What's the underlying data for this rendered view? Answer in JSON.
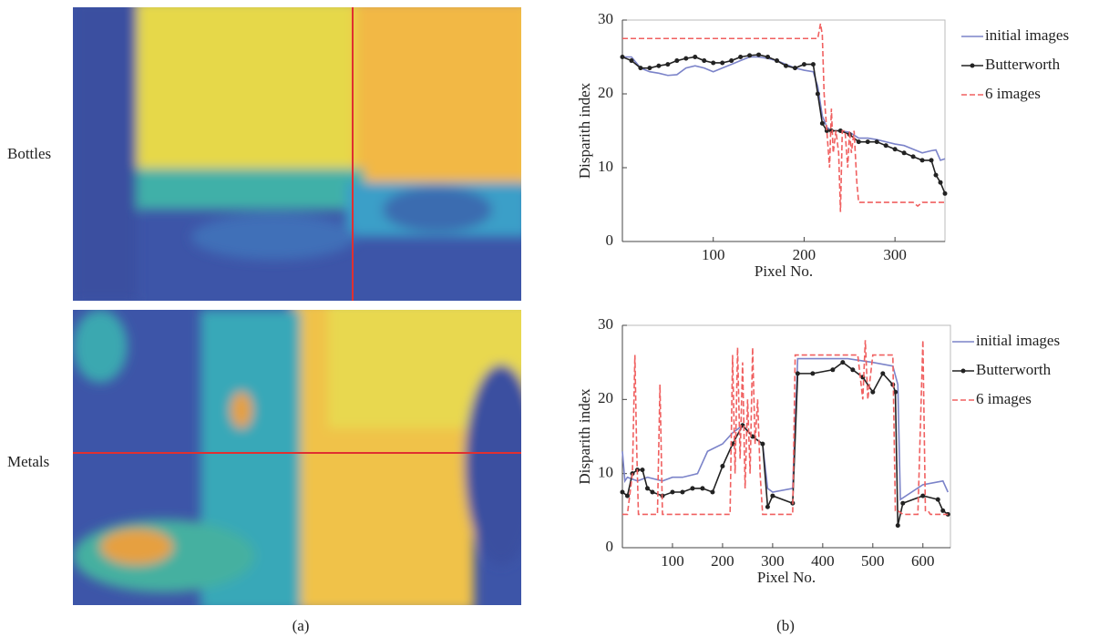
{
  "panels": {
    "a": {
      "label": "(a)",
      "rows": [
        "Bottles",
        "Metals"
      ]
    },
    "b": {
      "label": "(b)"
    }
  },
  "chart_data": [
    {
      "type": "line",
      "xlabel": "Pixel No.",
      "ylabel": "Disparith index",
      "xlim": [
        0,
        355
      ],
      "ylim": [
        0,
        30
      ],
      "xticks": [
        100,
        200,
        300
      ],
      "yticks": [
        0,
        10,
        20,
        30
      ],
      "legend": "right",
      "series": [
        {
          "name": "initial images",
          "color": "#7b83c9",
          "dash": false,
          "marker": false,
          "x": [
            0,
            10,
            20,
            30,
            40,
            50,
            60,
            70,
            80,
            90,
            100,
            110,
            120,
            130,
            140,
            150,
            160,
            170,
            180,
            190,
            200,
            210,
            215,
            220,
            225,
            230,
            240,
            250,
            260,
            270,
            280,
            290,
            300,
            310,
            320,
            330,
            340,
            345,
            350,
            355
          ],
          "values": [
            25,
            25,
            23.5,
            23,
            22.8,
            22.5,
            22.6,
            23.5,
            23.8,
            23.5,
            23,
            23.5,
            24,
            24.5,
            25,
            25,
            24.8,
            24.5,
            24,
            23.5,
            23.2,
            23,
            21,
            17,
            15.5,
            15,
            15,
            14.8,
            14,
            14,
            13.8,
            13.5,
            13.2,
            13,
            12.5,
            12,
            12.3,
            12.4,
            11,
            11.2
          ]
        },
        {
          "name": "Butterworth",
          "color": "#222222",
          "dash": false,
          "marker": true,
          "x": [
            0,
            10,
            20,
            30,
            40,
            50,
            60,
            70,
            80,
            90,
            100,
            110,
            120,
            130,
            140,
            150,
            160,
            170,
            180,
            190,
            200,
            210,
            215,
            220,
            225,
            230,
            240,
            250,
            260,
            270,
            280,
            290,
            300,
            310,
            320,
            330,
            340,
            345,
            350,
            355
          ],
          "values": [
            25,
            24.5,
            23.5,
            23.5,
            23.8,
            24,
            24.5,
            24.8,
            25,
            24.5,
            24.2,
            24.2,
            24.5,
            25,
            25.2,
            25.3,
            25,
            24.5,
            23.8,
            23.5,
            24,
            24,
            20,
            16,
            15,
            15,
            15,
            14.5,
            13.5,
            13.5,
            13.5,
            13,
            12.5,
            12,
            11.5,
            11,
            11,
            9,
            8,
            6.5
          ]
        },
        {
          "name": "6 images",
          "color": "#f06060",
          "dash": true,
          "marker": false,
          "x": [
            0,
            215,
            218,
            220,
            222,
            225,
            228,
            230,
            232,
            235,
            238,
            240,
            242,
            245,
            248,
            250,
            252,
            255,
            258,
            260,
            262,
            300,
            320,
            325,
            330,
            355
          ],
          "values": [
            27.5,
            27.5,
            29.5,
            28,
            20,
            15,
            10,
            18,
            12,
            15,
            12,
            4,
            15,
            15,
            10,
            15,
            12,
            15,
            8,
            5.3,
            5.3,
            5.3,
            5.3,
            4.8,
            5.3,
            5.3
          ]
        }
      ]
    },
    {
      "type": "line",
      "xlabel": "Pixel No.",
      "ylabel": "Disparith index",
      "xlim": [
        0,
        655
      ],
      "ylim": [
        0,
        30
      ],
      "xticks": [
        100,
        200,
        300,
        400,
        500,
        600
      ],
      "yticks": [
        0,
        10,
        20,
        30
      ],
      "legend": "right",
      "series": [
        {
          "name": "initial images",
          "color": "#7b83c9",
          "dash": false,
          "marker": false,
          "x": [
            0,
            5,
            10,
            30,
            50,
            80,
            100,
            120,
            150,
            170,
            200,
            220,
            240,
            260,
            280,
            290,
            300,
            340,
            350,
            360,
            400,
            450,
            500,
            540,
            550,
            555,
            600,
            640,
            650
          ],
          "values": [
            13,
            9,
            9.5,
            9,
            9.5,
            9,
            9.5,
            9.5,
            10,
            13,
            14,
            15.5,
            16.5,
            15,
            14,
            8,
            7.5,
            8,
            25.5,
            25.5,
            25.5,
            25.5,
            25,
            24.5,
            22,
            6.5,
            8.5,
            9,
            7.5
          ]
        },
        {
          "name": "Butterworth",
          "color": "#222222",
          "dash": false,
          "marker": true,
          "x": [
            0,
            10,
            20,
            30,
            40,
            50,
            60,
            80,
            100,
            120,
            140,
            160,
            180,
            200,
            220,
            240,
            260,
            280,
            290,
            300,
            340,
            350,
            380,
            420,
            440,
            460,
            480,
            500,
            520,
            540,
            545,
            550,
            560,
            600,
            630,
            640,
            650
          ],
          "values": [
            7.5,
            7,
            10,
            10.5,
            10.5,
            8,
            7.5,
            7,
            7.5,
            7.5,
            8,
            8,
            7.5,
            11,
            14,
            16.5,
            15,
            14,
            5.5,
            7,
            6,
            23.5,
            23.5,
            24,
            25,
            24,
            23,
            21,
            23.5,
            22,
            21,
            3,
            6,
            7,
            6.5,
            5,
            4.5
          ]
        },
        {
          "name": "6 images",
          "color": "#f06060",
          "dash": true,
          "marker": false,
          "x": [
            0,
            10,
            20,
            25,
            28,
            32,
            40,
            50,
            70,
            75,
            80,
            85,
            90,
            100,
            200,
            215,
            220,
            225,
            230,
            235,
            240,
            245,
            250,
            255,
            260,
            265,
            270,
            275,
            280,
            290,
            340,
            345,
            350,
            400,
            470,
            480,
            485,
            490,
            500,
            540,
            545,
            550,
            560,
            590,
            600,
            605,
            610,
            615,
            650
          ],
          "values": [
            4.5,
            4.5,
            10,
            26,
            15,
            4.5,
            4.5,
            4.5,
            4.5,
            22,
            4.5,
            4.5,
            4.5,
            4.5,
            4.5,
            4.5,
            26,
            10,
            27,
            12,
            25,
            8,
            20,
            10,
            27,
            14,
            20,
            10,
            4.5,
            4.5,
            4.5,
            26,
            26,
            26,
            26,
            20,
            28,
            20,
            26,
            26,
            5,
            5,
            4.5,
            4.5,
            28,
            5,
            5,
            4.5,
            4.5
          ]
        }
      ]
    }
  ]
}
